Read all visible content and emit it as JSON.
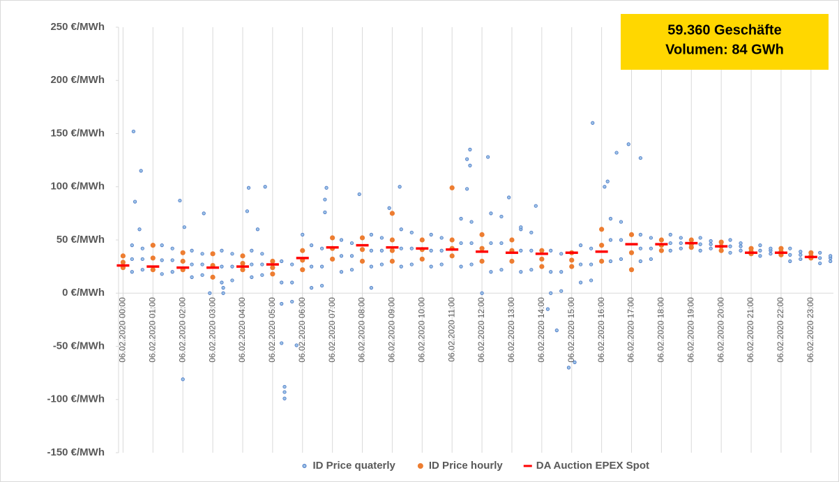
{
  "chart_data": {
    "type": "scatter",
    "annotation": [
      "59.360 Geschäfte",
      "Volumen: 84 GWh"
    ],
    "annotation_color": "#ffd700",
    "xlim": [
      -0.15,
      23.75
    ],
    "xticks": [
      {
        "value": 0,
        "label": "06.02.2020 00:00"
      },
      {
        "value": 1,
        "label": "06.02.2020 01:00"
      },
      {
        "value": 2,
        "label": "06.02.2020 02:00"
      },
      {
        "value": 3,
        "label": "06.02.2020 03:00"
      },
      {
        "value": 4,
        "label": "06.02.2020 04:00"
      },
      {
        "value": 5,
        "label": "06.02.2020 05:00"
      },
      {
        "value": 6,
        "label": "06.02.2020 06:00"
      },
      {
        "value": 7,
        "label": "06.02.2020 07:00"
      },
      {
        "value": 8,
        "label": "06.02.2020 08:00"
      },
      {
        "value": 9,
        "label": "06.02.2020 09:00"
      },
      {
        "value": 10,
        "label": "06.02.2020 10:00"
      },
      {
        "value": 11,
        "label": "06.02.2020 11:00"
      },
      {
        "value": 12,
        "label": "06.02.2020 12:00"
      },
      {
        "value": 13,
        "label": "06.02.2020 13:00"
      },
      {
        "value": 14,
        "label": "06.02.2020 14:00"
      },
      {
        "value": 15,
        "label": "06.02.2020 15:00"
      },
      {
        "value": 16,
        "label": "06.02.2020 16:00"
      },
      {
        "value": 17,
        "label": "06.02.2020 17:00"
      },
      {
        "value": 18,
        "label": "06.02.2020 18:00"
      },
      {
        "value": 19,
        "label": "06.02.2020 19:00"
      },
      {
        "value": 20,
        "label": "06.02.2020 20:00"
      },
      {
        "value": 21,
        "label": "06.02.2020 21:00"
      },
      {
        "value": 22,
        "label": "06.02.2020 22:00"
      },
      {
        "value": 23,
        "label": "06.02.2020 23:00"
      }
    ],
    "ylim": [
      -150,
      250
    ],
    "yticks": [
      {
        "value": -150,
        "label": "-150 €/MWh"
      },
      {
        "value": -100,
        "label": "-100 €/MWh"
      },
      {
        "value": -50,
        "label": "-50 €/MWh"
      },
      {
        "value": 0,
        "label": "0 €/MWh"
      },
      {
        "value": 50,
        "label": "50 €/MWh"
      },
      {
        "value": 100,
        "label": "100 €/MWh"
      },
      {
        "value": 150,
        "label": "150 €/MWh"
      },
      {
        "value": 200,
        "label": "200 €/MWh"
      },
      {
        "value": 250,
        "label": "250 €/MWh"
      }
    ],
    "negative_tick_color": "#ff0000",
    "grid": "x",
    "legend": "lower center",
    "series": [
      {
        "name": "ID Price quaterly",
        "color": "#4472c4",
        "marker": "circle",
        "x": [
          0.3,
          0.3,
          0.3,
          0.65,
          0.65,
          0.65,
          1.3,
          1.3,
          1.3,
          1.65,
          1.65,
          1.65,
          2.3,
          2.3,
          2.3,
          2.65,
          2.65,
          2.65,
          3.3,
          3.3,
          3.3,
          3.65,
          3.65,
          3.65,
          4.3,
          4.3,
          4.3,
          4.65,
          4.65,
          4.65,
          5.3,
          5.3,
          5.3,
          5.65,
          5.65,
          5.65,
          6.3,
          6.3,
          6.3,
          6.65,
          6.65,
          6.65,
          7.3,
          7.3,
          7.3,
          7.65,
          7.65,
          7.65,
          8.3,
          8.3,
          8.3,
          8.65,
          8.65,
          8.65,
          9.3,
          9.3,
          9.3,
          9.65,
          9.65,
          9.65,
          10.3,
          10.3,
          10.3,
          10.65,
          10.65,
          10.65,
          11.3,
          11.3,
          11.3,
          11.65,
          11.65,
          11.65,
          12.3,
          12.3,
          12.3,
          12.65,
          12.65,
          12.65,
          13.3,
          13.3,
          13.3,
          13.65,
          13.65,
          13.65,
          14.3,
          14.3,
          14.3,
          14.65,
          14.65,
          14.65,
          15.3,
          15.3,
          15.3,
          15.65,
          15.65,
          15.65,
          16.3,
          16.3,
          16.3,
          16.65,
          16.65,
          16.65,
          17.3,
          17.3,
          17.3,
          17.65,
          17.65,
          17.65,
          18.3,
          18.3,
          18.3,
          18.65,
          18.65,
          18.65,
          19.3,
          19.3,
          19.3,
          19.65,
          19.65,
          19.65,
          20.3,
          20.3,
          20.3,
          20.65,
          20.65,
          20.65,
          21.3,
          21.3,
          21.3,
          21.65,
          21.65,
          21.65,
          22.3,
          22.3,
          22.3,
          22.65,
          22.65,
          22.65,
          23.3,
          23.3,
          23.3,
          23.65,
          23.65,
          23.65,
          0.35,
          0.4,
          0.6,
          0.55,
          1.9,
          2.05,
          2.0,
          2.7,
          2.9,
          3.35,
          3.35,
          4.2,
          4.15,
          4.5,
          4.75,
          5.3,
          5.4,
          5.4,
          5.4,
          5.8,
          6.0,
          6.8,
          6.75,
          6.75,
          7.9,
          8.3,
          8.9,
          9.25,
          11.5,
          11.6,
          11.6,
          11.5,
          12.0,
          12.2,
          12.9,
          13.3,
          13.8,
          14.2,
          14.5,
          14.9,
          15.1,
          15.7,
          16.2,
          16.5,
          16.9,
          16.1,
          17.3
        ],
        "values": [
          20,
          32,
          45,
          22,
          32,
          42,
          18,
          31,
          45,
          20,
          31,
          42,
          15,
          27,
          40,
          17,
          27,
          37,
          10,
          25,
          40,
          12,
          25,
          37,
          15,
          27,
          40,
          17,
          27,
          37,
          -10,
          10,
          30,
          -8,
          10,
          27,
          5,
          25,
          45,
          7,
          25,
          42,
          20,
          35,
          50,
          22,
          35,
          47,
          25,
          40,
          55,
          27,
          40,
          52,
          25,
          42,
          60,
          27,
          42,
          57,
          25,
          40,
          55,
          27,
          40,
          52,
          25,
          47,
          70,
          27,
          47,
          67,
          20,
          47,
          75,
          22,
          47,
          72,
          20,
          40,
          60,
          22,
          40,
          57,
          0,
          20,
          40,
          2,
          20,
          37,
          10,
          27,
          45,
          12,
          27,
          42,
          30,
          50,
          70,
          32,
          50,
          67,
          30,
          42,
          55,
          32,
          42,
          52,
          40,
          47,
          55,
          42,
          47,
          52,
          40,
          46,
          52,
          42,
          46,
          49,
          38,
          44,
          50,
          40,
          44,
          47,
          35,
          40,
          45,
          37,
          40,
          42,
          30,
          36,
          42,
          32,
          36,
          39,
          28,
          33,
          38,
          30,
          33,
          35,
          152,
          86,
          115,
          60,
          87,
          62,
          -81,
          75,
          0,
          5,
          0,
          99,
          77,
          60,
          100,
          -47,
          -88,
          -93,
          -99,
          -49,
          55,
          99,
          88,
          76,
          93,
          5,
          80,
          100,
          126,
          135,
          120,
          98,
          0,
          128,
          90,
          62,
          82,
          -15,
          -35,
          -70,
          -65,
          160,
          105,
          132,
          140,
          100,
          127
        ]
      },
      {
        "name": "ID Price hourly",
        "color": "#ed7d31",
        "marker": "circle",
        "x": [
          0,
          0,
          0,
          1,
          1,
          1,
          2,
          2,
          2,
          3,
          3,
          3,
          4,
          4,
          4,
          5,
          5,
          5,
          6,
          6,
          6,
          7,
          7,
          7,
          8,
          8,
          8,
          9,
          9,
          9,
          9,
          10,
          10,
          10,
          11,
          11,
          11,
          11,
          12,
          12,
          12,
          13,
          13,
          13,
          14,
          14,
          14,
          15,
          15,
          15,
          16,
          16,
          16,
          17,
          17,
          17,
          18,
          18,
          18,
          19,
          19,
          19,
          20,
          20,
          20,
          21,
          21,
          21,
          22,
          22,
          22,
          23,
          23,
          23
        ],
        "values": [
          24,
          29,
          35,
          22,
          33,
          45,
          22,
          30,
          38,
          15,
          26,
          37,
          22,
          28,
          35,
          18,
          24,
          30,
          22,
          31,
          40,
          32,
          42,
          52,
          30,
          41,
          52,
          30,
          40,
          50,
          75,
          32,
          41,
          50,
          35,
          42,
          50,
          99,
          30,
          42,
          55,
          30,
          40,
          50,
          25,
          32,
          40,
          25,
          31,
          38,
          30,
          45,
          60,
          22,
          38,
          55,
          40,
          45,
          50,
          43,
          46,
          50,
          40,
          44,
          48,
          37,
          39,
          42,
          36,
          39,
          42,
          33,
          35,
          38
        ]
      },
      {
        "name": "DA Auction EPEX Spot",
        "color": "#ff0000",
        "marker": "dash",
        "x": [
          0,
          1,
          2,
          3,
          4,
          5,
          6,
          7,
          8,
          9,
          10,
          11,
          12,
          13,
          14,
          15,
          16,
          17,
          18,
          19,
          20,
          21,
          22,
          23
        ],
        "values": [
          26,
          25,
          24,
          24,
          25,
          27,
          33,
          43,
          45,
          43,
          42,
          41,
          39,
          38,
          37,
          38,
          39,
          46,
          46,
          47,
          44,
          38,
          38,
          34
        ]
      }
    ]
  }
}
